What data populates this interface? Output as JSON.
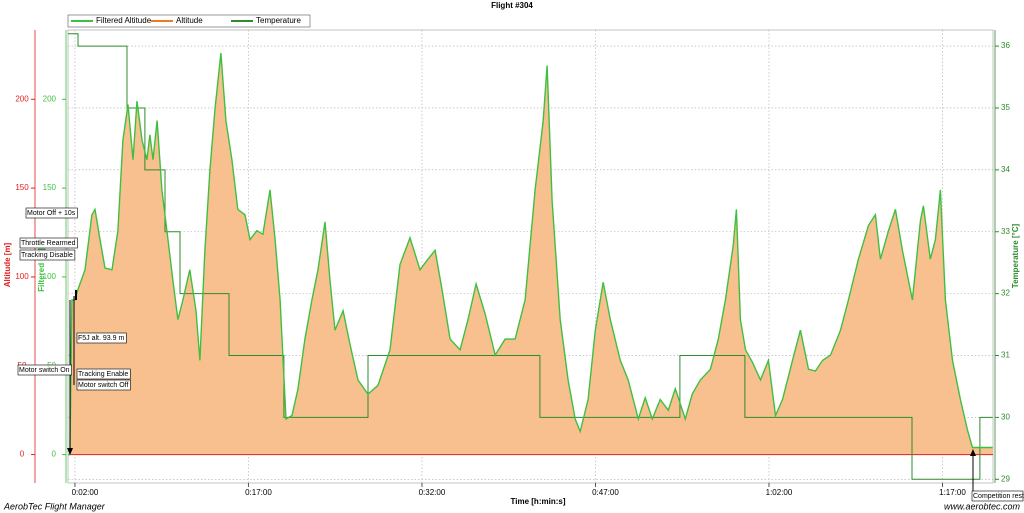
{
  "chart_data": {
    "type": "line",
    "title": "Flight #304",
    "xlabel": "Time [h:min:s]",
    "ylabel": "Altitude [m]",
    "ylabel_filtered": "Filtered [m]",
    "y2label": "Temperature [°C]",
    "legend": "top-left",
    "grid": true,
    "x": [
      84,
      94,
      104,
      120,
      136,
      172,
      208,
      224,
      250,
      276,
      312,
      343,
      369,
      395,
      421,
      442,
      468,
      493,
      509,
      525,
      546,
      571,
      597,
      628,
      654,
      680,
      716,
      748,
      768,
      794,
      820,
      846,
      877,
      903,
      934,
      965,
      1002,
      1028,
      1064,
      1095,
      1132,
      1158,
      1184,
      1215,
      1246,
      1277,
      1313,
      1349,
      1381,
      1417,
      1443,
      1469,
      1511,
      1547,
      1588,
      1640,
      1692,
      1754,
      1806,
      1858,
      1910,
      1951,
      1988,
      2024,
      2066,
      2118,
      2159,
      2201,
      2248,
      2300,
      2351,
      2403,
      2455,
      2507,
      2549,
      2569,
      2595,
      2637,
      2678,
      2715,
      2741,
      2782,
      2819,
      2860,
      2897,
      2949,
      2990,
      3042,
      3078,
      3115,
      3156,
      3198,
      3234,
      3286,
      3322,
      3364,
      3416,
      3457,
      3494,
      3535,
      3551,
      3572,
      3598,
      3634,
      3676,
      3717,
      3754,
      3790,
      3842,
      3883,
      3925,
      3961,
      3998,
      4039,
      4091,
      4132,
      4184,
      4236,
      4272,
      4298,
      4340,
      4376,
      4412,
      4464,
      4506,
      4521,
      4557,
      4583,
      4609,
      4635,
      4672,
      4713,
      4749,
      4775,
      4806,
      4880
    ],
    "xlim": [
      84,
      4882
    ],
    "xticks": [
      {
        "value": 120,
        "label": "0:02:00"
      },
      {
        "value": 1020,
        "label": "0:17:00"
      },
      {
        "value": 1920,
        "label": "0:32:00"
      },
      {
        "value": 2820,
        "label": "0:47:00"
      },
      {
        "value": 3720,
        "label": "1:02:00"
      },
      {
        "value": 4620,
        "label": "1:17:00"
      }
    ],
    "ylim": [
      -16,
      239
    ],
    "yticks": [
      0,
      50,
      100,
      150,
      200
    ],
    "y2lim": [
      28.94,
      36.26
    ],
    "y2ticks": [
      29,
      30,
      31,
      32,
      33,
      34,
      35,
      36
    ],
    "series": [
      {
        "name": "Filtered Altitude",
        "color": "#3fbf3f",
        "values": [
          0,
          0,
          87,
          87,
          93,
          104,
          135,
          138,
          121,
          105,
          104,
          126,
          177,
          197,
          166,
          199,
          177,
          166,
          180,
          166,
          188,
          149,
          126,
          98,
          76,
          87,
          104,
          81,
          53,
          115,
          160,
          194,
          226,
          188,
          166,
          138,
          135,
          121,
          126,
          124,
          149,
          121,
          87,
          20,
          22,
          37,
          65,
          87,
          104,
          131,
          98,
          70,
          81,
          62,
          42,
          34,
          39,
          59,
          107,
          122,
          104,
          110,
          115,
          93,
          65,
          59,
          76,
          96,
          79,
          56,
          65,
          65,
          87,
          149,
          188,
          219,
          143,
          76,
          42,
          20,
          13,
          31,
          70,
          97,
          76,
          53,
          42,
          20,
          32,
          20,
          31,
          25,
          37,
          20,
          34,
          42,
          48,
          65,
          87,
          118,
          138,
          76,
          59,
          52,
          42,
          53,
          22,
          31,
          53,
          70,
          48,
          47,
          53,
          56,
          70,
          87,
          110,
          129,
          135,
          110,
          126,
          138,
          115,
          87,
          132,
          140,
          110,
          121,
          149,
          87,
          53,
          31,
          14,
          4,
          4,
          4
        ]
      },
      {
        "name": "Altitude",
        "color": "#ee7a22",
        "fill": "#f9c08f",
        "values": [
          0,
          0,
          87,
          87,
          93,
          104,
          135,
          138,
          121,
          105,
          104,
          126,
          177,
          197,
          166,
          199,
          177,
          166,
          180,
          166,
          188,
          149,
          126,
          98,
          76,
          87,
          104,
          81,
          53,
          115,
          160,
          194,
          226,
          188,
          166,
          138,
          135,
          121,
          126,
          124,
          149,
          121,
          87,
          20,
          22,
          37,
          65,
          87,
          104,
          131,
          98,
          70,
          81,
          62,
          42,
          34,
          39,
          59,
          107,
          122,
          104,
          110,
          115,
          93,
          65,
          59,
          76,
          96,
          79,
          56,
          65,
          65,
          87,
          149,
          188,
          219,
          143,
          76,
          42,
          20,
          13,
          31,
          70,
          97,
          76,
          53,
          42,
          20,
          32,
          20,
          31,
          25,
          37,
          20,
          34,
          42,
          48,
          65,
          87,
          118,
          138,
          76,
          59,
          52,
          42,
          53,
          22,
          31,
          53,
          70,
          48,
          47,
          53,
          56,
          70,
          87,
          110,
          129,
          135,
          110,
          126,
          138,
          115,
          87,
          132,
          140,
          110,
          121,
          149,
          87,
          53,
          31,
          14,
          4,
          4,
          4
        ]
      },
      {
        "name": "Temperature",
        "color": "#2e8b2e",
        "axis": "y2",
        "x": [
          84,
          136,
          136,
          390,
          390,
          483,
          483,
          587,
          587,
          665,
          665,
          919,
          919,
          1204,
          1204,
          1640,
          1640,
          2532,
          2532,
          3258,
          3258,
          3595,
          3595,
          4462,
          4462,
          4814,
          4814,
          4880
        ],
        "values": [
          36.2,
          36.2,
          36,
          36,
          35,
          35,
          34,
          34,
          33,
          33,
          32,
          32,
          31,
          31,
          30,
          30,
          31,
          31,
          30,
          30,
          31,
          31,
          30,
          30,
          29,
          29,
          30,
          30
        ]
      }
    ],
    "annotations": [
      "Motor Off + 10s",
      "Throttle Rearmed",
      "Tracking Disable",
      "F5J alt. 93.9 m",
      "Motor switch On",
      "Tracking Enable",
      "Motor switch Off",
      "Competition rest"
    ],
    "footer_left": "AerobTec Flight Manager",
    "footer_right": "www.aerobtec.com"
  }
}
